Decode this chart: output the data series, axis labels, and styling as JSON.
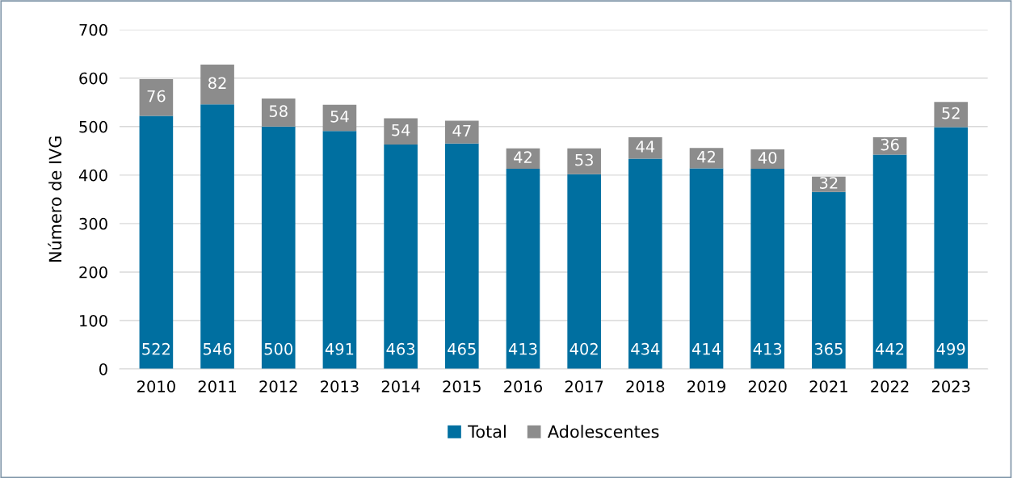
{
  "chart_data": {
    "type": "bar",
    "stacked": true,
    "ylabel": "Número de IVG",
    "categories": [
      "2010",
      "2011",
      "2012",
      "2013",
      "2014",
      "2015",
      "2016",
      "2017",
      "2018",
      "2019",
      "2020",
      "2021",
      "2022",
      "2023"
    ],
    "series": [
      {
        "name": "Total",
        "color": "#006fa0",
        "values": [
          522,
          546,
          500,
          491,
          463,
          465,
          413,
          402,
          434,
          414,
          413,
          365,
          442,
          499
        ]
      },
      {
        "name": "Adolescentes",
        "color": "#8c8c8c",
        "values": [
          76,
          82,
          58,
          54,
          54,
          47,
          42,
          53,
          44,
          42,
          40,
          32,
          36,
          52
        ]
      }
    ],
    "ylim": [
      0,
      700
    ],
    "yticks": [
      0,
      100,
      200,
      300,
      400,
      500,
      600,
      700
    ],
    "grid": "y",
    "legend": "bottom",
    "data_labels": true
  }
}
